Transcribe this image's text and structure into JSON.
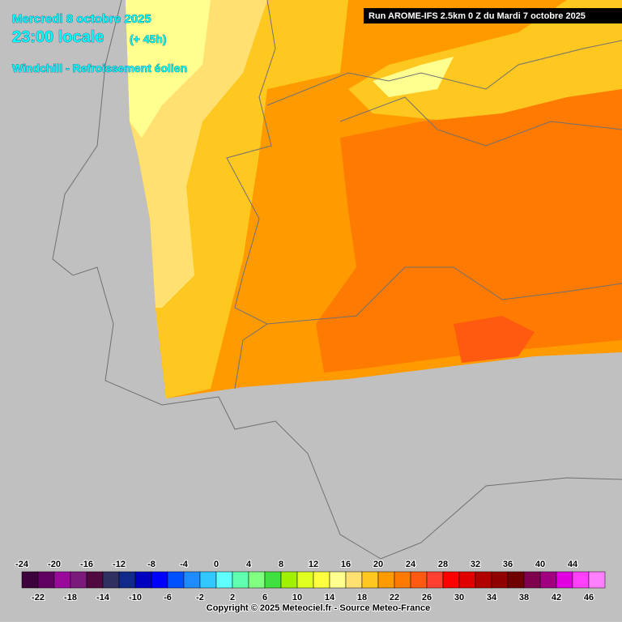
{
  "header": {
    "date": "Mercredi 8 octobre 2025",
    "time": "23:00 locale",
    "offset": "(+ 45h)",
    "product": "Windchill - Refroissement éolien"
  },
  "run": "Run AROME-IFS 2.5km 0 Z du Mardi 7 octobre 2025",
  "legend": [
    {
      "value": -24,
      "color": "#3c003c"
    },
    {
      "value": -22,
      "color": "#600060"
    },
    {
      "value": -20,
      "color": "#9a0a9a"
    },
    {
      "value": -18,
      "color": "#7a1a7a"
    },
    {
      "value": -16,
      "color": "#500a40"
    },
    {
      "value": -14,
      "color": "#303060"
    },
    {
      "value": -12,
      "color": "#102a8a"
    },
    {
      "value": -10,
      "color": "#0000c0"
    },
    {
      "value": -8,
      "color": "#0000ff"
    },
    {
      "value": -6,
      "color": "#0050ff"
    },
    {
      "value": -4,
      "color": "#1e8cff"
    },
    {
      "value": -2,
      "color": "#30c8ff"
    },
    {
      "value": 0,
      "color": "#60ffff"
    },
    {
      "value": 2,
      "color": "#60ffb0"
    },
    {
      "value": 4,
      "color": "#80ff80"
    },
    {
      "value": 6,
      "color": "#40e040"
    },
    {
      "value": 8,
      "color": "#a0f000"
    },
    {
      "value": 10,
      "color": "#e0ff20"
    },
    {
      "value": 12,
      "color": "#ffff40"
    },
    {
      "value": 14,
      "color": "#ffff90"
    },
    {
      "value": 16,
      "color": "#ffe070"
    },
    {
      "value": 18,
      "color": "#ffc820"
    },
    {
      "value": 20,
      "color": "#ff9a00"
    },
    {
      "value": 22,
      "color": "#ff7a00"
    },
    {
      "value": 24,
      "color": "#ff5a10"
    },
    {
      "value": 26,
      "color": "#ff4030"
    },
    {
      "value": 28,
      "color": "#ff0000"
    },
    {
      "value": 30,
      "color": "#e00000"
    },
    {
      "value": 32,
      "color": "#b00000"
    },
    {
      "value": 34,
      "color": "#900000"
    },
    {
      "value": 36,
      "color": "#700000"
    },
    {
      "value": 38,
      "color": "#800050"
    },
    {
      "value": 40,
      "color": "#a00080"
    },
    {
      "value": 42,
      "color": "#e000e0"
    },
    {
      "value": 44,
      "color": "#ff40ff"
    },
    {
      "value": 46,
      "color": "#ff80ff"
    }
  ],
  "copyright": "Copyright © 2025 Meteociel.fr - Source Meteo-France"
}
